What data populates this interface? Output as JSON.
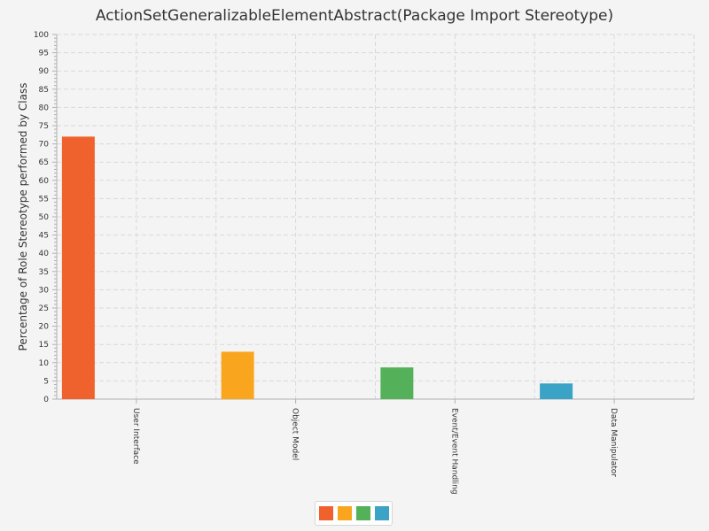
{
  "chart_data": {
    "type": "bar",
    "title": "ActionSetGeneralizableElementAbstract(Package Import Stereotype)",
    "xlabel": "",
    "ylabel": "Percentage of Role Stereotype performed by Class",
    "ylim": [
      0,
      100
    ],
    "ytick_step": 5,
    "grid": true,
    "legend_position": "bottom-center",
    "categories": [
      "User Interface",
      "Object Model",
      "Event/Event Handling",
      "Data Manipulator"
    ],
    "values": [
      72,
      13,
      8.7,
      4.3
    ],
    "colors": [
      "#f0622d",
      "#f9a61e",
      "#55b159",
      "#3aa3c6"
    ]
  }
}
